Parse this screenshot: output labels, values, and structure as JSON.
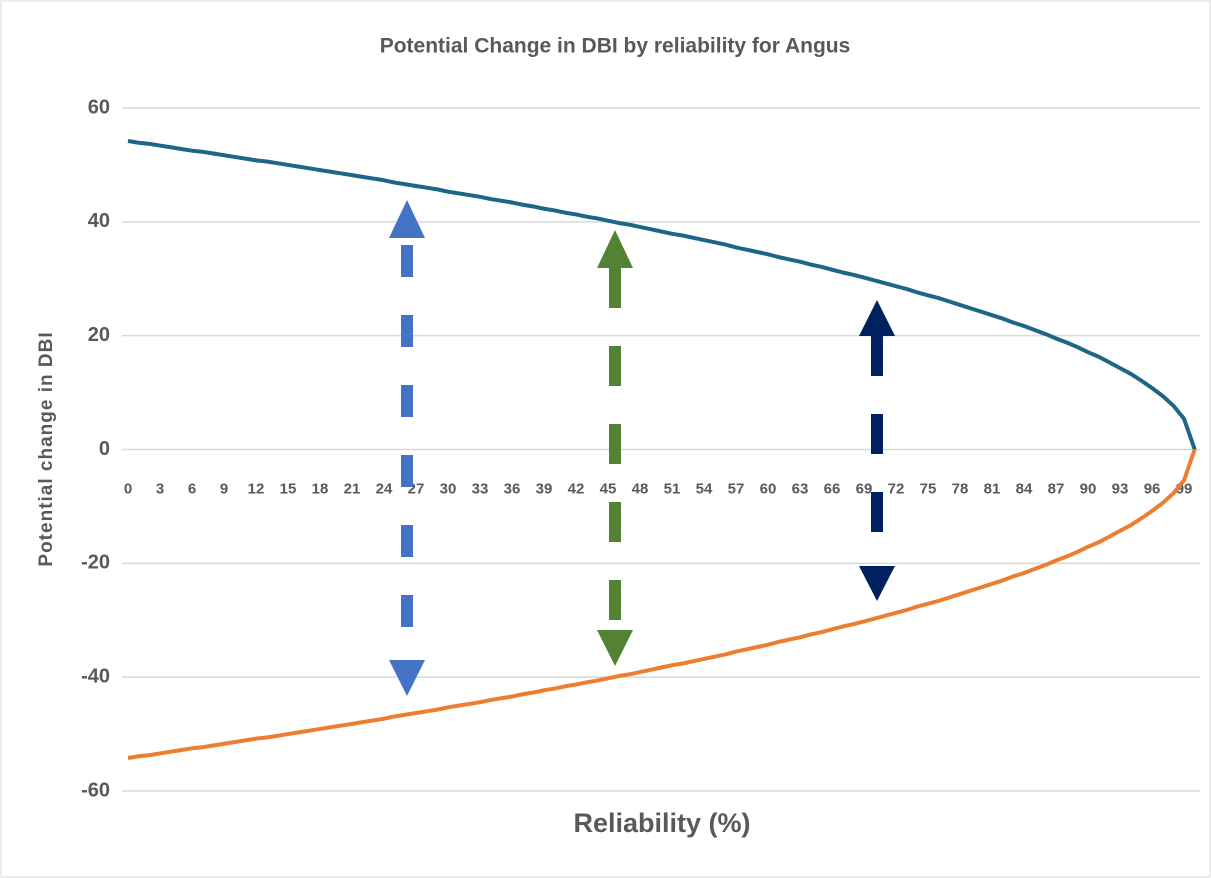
{
  "chart_data": {
    "type": "line",
    "title": "Potential Change in DBI by reliability for Angus",
    "x_label": "Reliability (%)",
    "y_label": "Potential change in DBI",
    "categories": [
      "0",
      null,
      null,
      "3",
      null,
      null,
      "6",
      null,
      null,
      "9",
      null,
      null,
      "12",
      null,
      null,
      "15",
      null,
      null,
      "18",
      null,
      null,
      "21",
      null,
      null,
      "24",
      null,
      null,
      "27",
      null,
      null,
      "30",
      null,
      null,
      "33",
      null,
      null,
      "36",
      null,
      null,
      "39",
      null,
      null,
      "42",
      null,
      null,
      "45",
      null,
      null,
      "48",
      null,
      null,
      "51",
      null,
      null,
      "54",
      null,
      null,
      "57",
      null,
      null,
      "60",
      null,
      null,
      "63",
      null,
      null,
      "66",
      null,
      null,
      "69",
      null,
      null,
      "72",
      null,
      null,
      "75",
      null,
      null,
      "78",
      null,
      null,
      "81",
      null,
      null,
      "84",
      null,
      null,
      "87",
      null,
      null,
      "90",
      null,
      null,
      "93",
      null,
      null,
      "96",
      null,
      null,
      "99",
      null
    ],
    "series": [
      {
        "color": "#1f6587",
        "values": [
          54.2,
          53.9,
          53.7,
          53.4,
          53.1,
          52.8,
          52.5,
          52.3,
          52.0,
          51.7,
          51.4,
          51.1,
          50.8,
          50.6,
          50.3,
          50.0,
          49.7,
          49.4,
          49.1,
          48.8,
          48.5,
          48.2,
          47.9,
          47.6,
          47.3,
          46.9,
          46.6,
          46.3,
          46.0,
          45.7,
          45.3,
          45.0,
          44.7,
          44.4,
          44.0,
          43.7,
          43.4,
          43.0,
          42.7,
          42.3,
          42.0,
          41.6,
          41.3,
          40.9,
          40.6,
          40.2,
          39.8,
          39.5,
          39.1,
          38.7,
          38.3,
          37.9,
          37.6,
          37.2,
          36.8,
          36.4,
          36.0,
          35.5,
          35.1,
          34.7,
          34.3,
          33.8,
          33.4,
          33.0,
          32.5,
          32.1,
          31.6,
          31.1,
          30.7,
          30.2,
          29.7,
          29.2,
          28.7,
          28.2,
          27.6,
          27.1,
          26.6,
          26.0,
          25.4,
          24.8,
          24.2,
          23.6,
          23.0,
          22.3,
          21.7,
          21.0,
          20.3,
          19.5,
          18.8,
          18.0,
          17.1,
          16.3,
          15.3,
          14.3,
          13.3,
          12.1,
          10.8,
          9.4,
          7.7,
          5.4,
          0
        ]
      },
      {
        "color": "#ed7d31",
        "values": [
          -54.2,
          -53.9,
          -53.7,
          -53.4,
          -53.1,
          -52.8,
          -52.5,
          -52.3,
          -52.0,
          -51.7,
          -51.4,
          -51.1,
          -50.8,
          -50.6,
          -50.3,
          -50.0,
          -49.7,
          -49.4,
          -49.1,
          -48.8,
          -48.5,
          -48.2,
          -47.9,
          -47.6,
          -47.3,
          -46.9,
          -46.6,
          -46.3,
          -46.0,
          -45.7,
          -45.3,
          -45.0,
          -44.7,
          -44.4,
          -44.0,
          -43.7,
          -43.4,
          -43.0,
          -42.7,
          -42.3,
          -42.0,
          -41.6,
          -41.3,
          -40.9,
          -40.6,
          -40.2,
          -39.8,
          -39.5,
          -39.1,
          -38.7,
          -38.3,
          -37.9,
          -37.6,
          -37.2,
          -36.8,
          -36.4,
          -36.0,
          -35.5,
          -35.1,
          -34.7,
          -34.3,
          -33.8,
          -33.4,
          -33.0,
          -32.5,
          -32.1,
          -31.6,
          -31.1,
          -30.7,
          -30.2,
          -29.7,
          -29.2,
          -28.7,
          -28.2,
          -27.6,
          -27.1,
          -26.6,
          -26.0,
          -25.4,
          -24.8,
          -24.2,
          -23.6,
          -23.0,
          -22.3,
          -21.7,
          -21.0,
          -20.3,
          -19.5,
          -18.8,
          -18.0,
          -17.1,
          -16.3,
          -15.3,
          -14.3,
          -13.3,
          -12.1,
          -10.8,
          -9.4,
          -7.7,
          -5.4,
          0
        ]
      }
    ],
    "ylim": [
      -60,
      60
    ],
    "yticks": [
      -60,
      -40,
      -20,
      0,
      20,
      40,
      60
    ],
    "grid": true
  }
}
